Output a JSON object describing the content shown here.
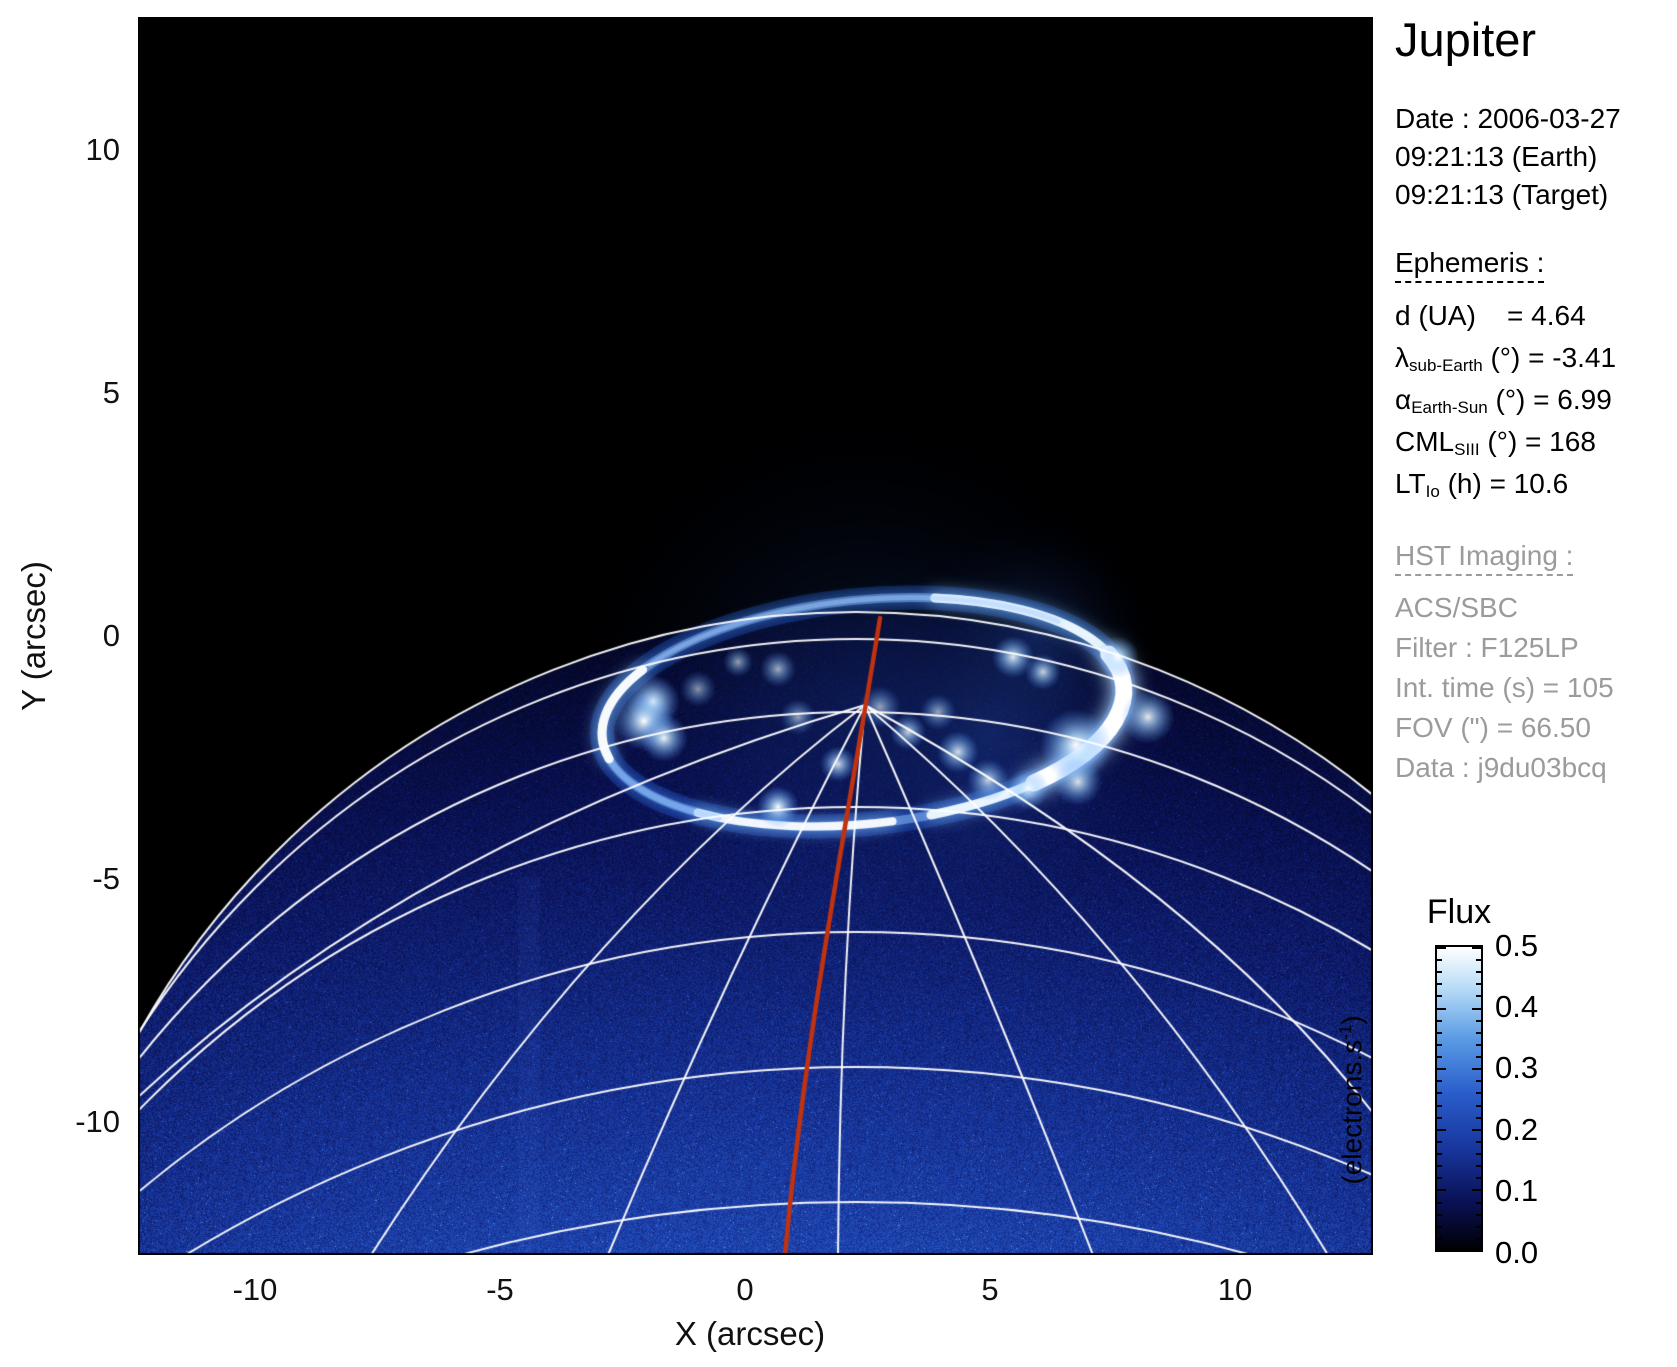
{
  "title": "Jupiter",
  "info": {
    "date_lines": [
      "Date : 2006-03-27",
      "09:21:13 (Earth)",
      "09:21:13 (Target)"
    ]
  },
  "ephemeris": {
    "heading": "Ephemeris :",
    "rows": [
      {
        "pre": "d (UA)",
        "sub": "",
        "post": "    = 4.64"
      },
      {
        "pre": "λ",
        "sub": "sub-Earth",
        "post": " (°) = -3.41"
      },
      {
        "pre": "α",
        "sub": "Earth-Sun",
        "post": " (°) = 6.99"
      },
      {
        "pre": "CML",
        "sub": "SIII",
        "post": " (°) = 168"
      },
      {
        "pre": "LT",
        "sub": "Io",
        "post": " (h) = 10.6"
      }
    ]
  },
  "hst": {
    "heading": "HST Imaging :",
    "lines": [
      "ACS/SBC",
      "Filter : F125LP",
      "Int. time (s) = 105",
      "FOV (\") = 66.50",
      "Data : j9du03bcq"
    ]
  },
  "axes": {
    "x_label": "X (arcsec)",
    "y_label": "Y (arcsec)",
    "x_ticks": [
      "-10",
      "-5",
      "0",
      "5",
      "10"
    ],
    "y_ticks": [
      "10",
      "5",
      "0",
      "-5",
      "-10"
    ]
  },
  "colorbar": {
    "title": "Flux",
    "unit_pre": "(electrons.s",
    "unit_sup": "-1",
    "unit_post": ")",
    "ticks": [
      "0.5",
      "0.4",
      "0.3",
      "0.2",
      "0.1",
      "0.0"
    ]
  },
  "colors": {
    "space": "#000000",
    "graticule": "#ffffff",
    "red_line": "#c03210",
    "gray_text": "#9b9b9b",
    "aurora_glow": "#66b8ff",
    "cmap": [
      "#000004",
      "#0a1155",
      "#18379f",
      "#2a5ecb",
      "#5b9ce4",
      "#b5daf6",
      "#ffffff"
    ]
  },
  "chart_data": {
    "type": "heatmap",
    "title": "Jupiter",
    "xlabel": "X (arcsec)",
    "ylabel": "Y (arcsec)",
    "x_ticks": [
      -10,
      -5,
      0,
      5,
      10
    ],
    "y_ticks": [
      10,
      5,
      0,
      -5,
      -10
    ],
    "x_range": [
      -12.5,
      12.9
    ],
    "y_range": [
      -12.8,
      12.7
    ],
    "grid": false,
    "colorbar": {
      "title": "Flux",
      "unit": "electrons.s-1",
      "range": [
        0.0,
        0.5
      ],
      "ticks": [
        0.0,
        0.1,
        0.2,
        0.3,
        0.4,
        0.5
      ],
      "colormap": "black-blue-white"
    },
    "content_description": [
      "Far-UV HST ACS/SBC image of Jupiter's northern polar region on black sky",
      "Planetary disk fills lower part of frame; limb apex near x=+2.4, y=+0.5 arcsec; disk brightness increases toward bottom (lower latitudes)",
      "Bright auroral oval centered near x=+3, y=-1.4 arcsec, about 11 x 4.6 arcsec, brightest along its right (dusk) flank with a secondary bright crescent on its left edge",
      "Several emission patches inside the oval and an isolated auroral spot near x=-1.5, y=-3.7 arcsec",
      "White planetocentric latitude/longitude graticule drawn over disk and limb",
      "Red meridian curve runs from the oval's top (near x=+3, y=-0.4) down to the bottom edge near x=+0.9 arcsec"
    ]
  }
}
